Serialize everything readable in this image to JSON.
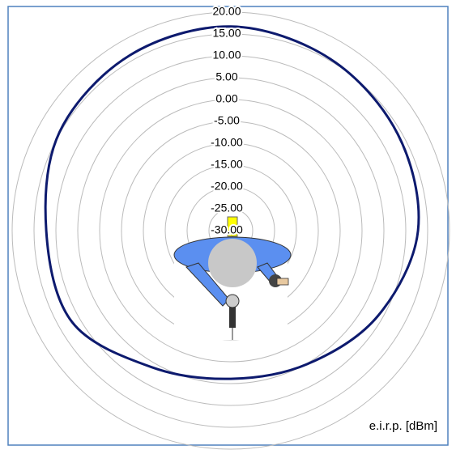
{
  "chart_data": {
    "type": "polar",
    "unit_label": "e.i.r.p. [dBm]",
    "rlim": [
      -30,
      20
    ],
    "rticks": [
      {
        "value": 20,
        "label": "20.00"
      },
      {
        "value": 15,
        "label": "15.00"
      },
      {
        "value": 10,
        "label": "10.00"
      },
      {
        "value": 5,
        "label": "5.00"
      },
      {
        "value": 0,
        "label": "0.00"
      },
      {
        "value": -5,
        "label": "-5.00"
      },
      {
        "value": -10,
        "label": "-10.00"
      },
      {
        "value": -15,
        "label": "-15.00"
      },
      {
        "value": -20,
        "label": "-20.00"
      },
      {
        "value": -25,
        "label": "-25.00"
      },
      {
        "value": -30,
        "label": "-30.00"
      }
    ],
    "grid": true,
    "theta": [
      0,
      30,
      60,
      90,
      120,
      150,
      180,
      210,
      240,
      270,
      300,
      330
    ],
    "series": [
      {
        "color": "#0d1a6e",
        "values": [
          16.7,
          15.4,
          14.1,
          12.8,
          8.9,
          5.2,
          3.9,
          6.1,
          11.9,
          12.2,
          15.2,
          16.3
        ]
      }
    ]
  }
}
